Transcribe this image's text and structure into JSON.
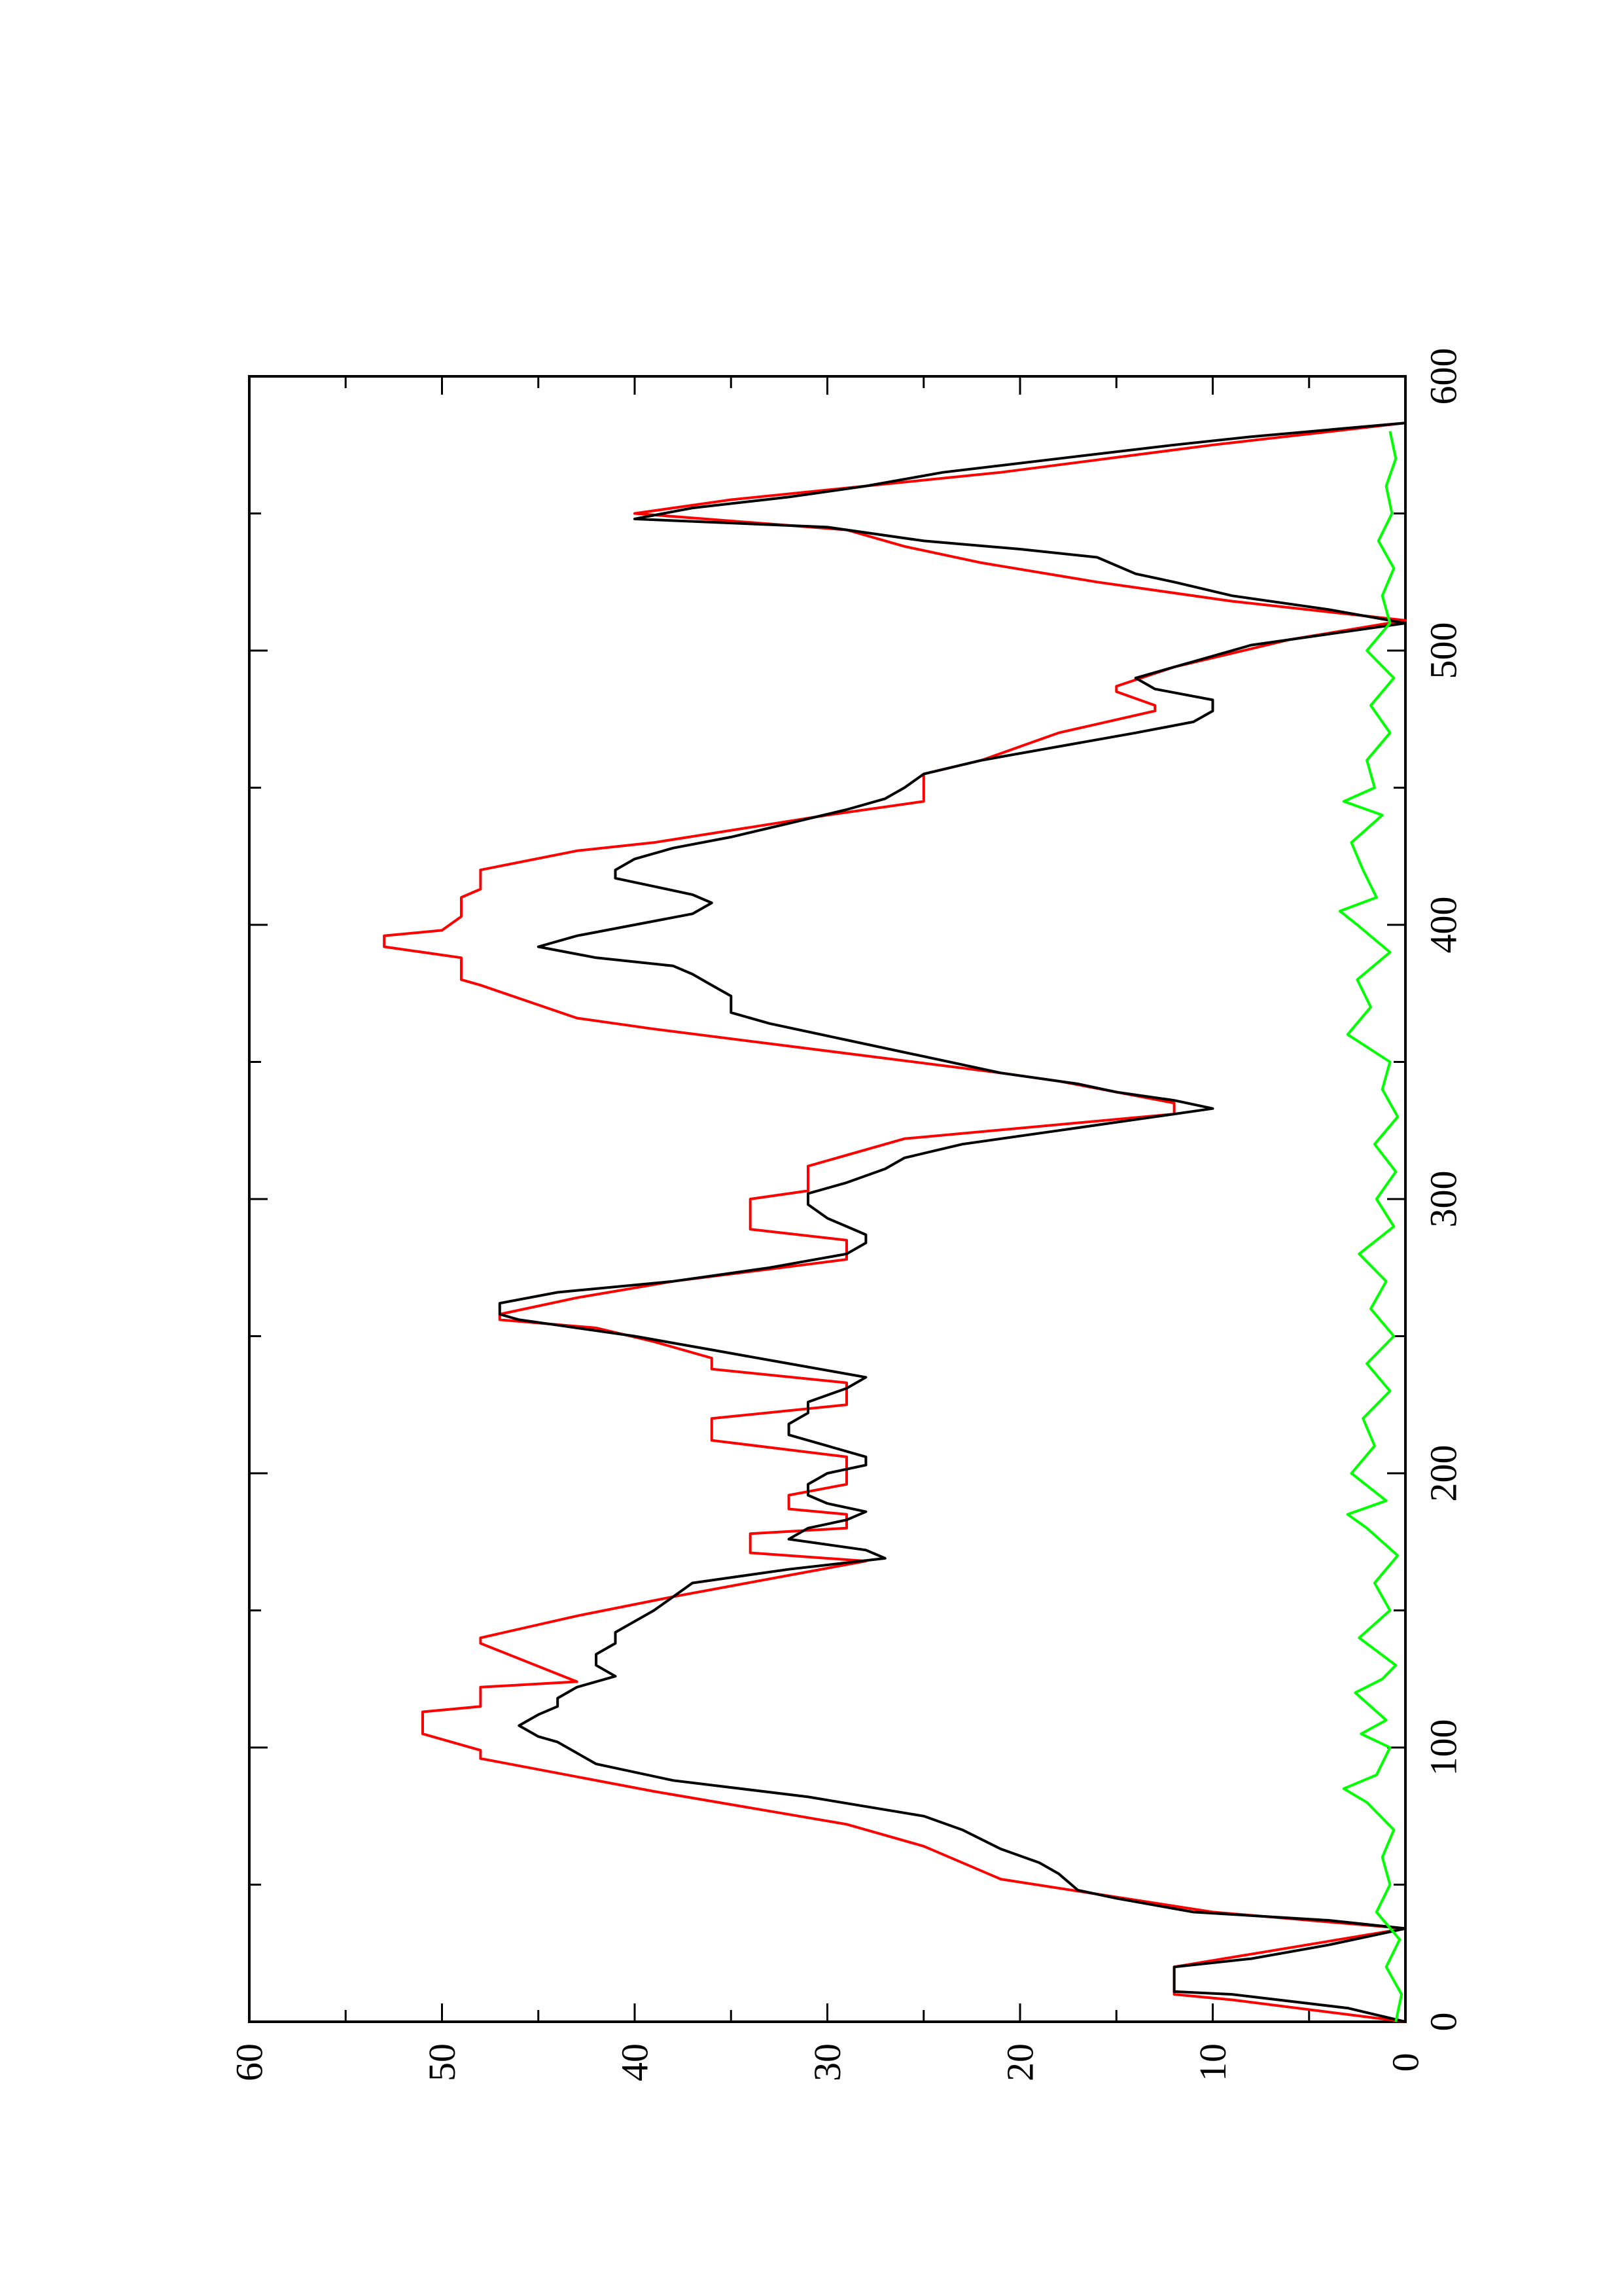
{
  "chart_data": {
    "type": "line",
    "orientation": "rotated 90° counter-clockwise (x runs bottom to top, y runs right to left)",
    "title": "",
    "xlabel": "",
    "ylabel": "",
    "xlim": [
      0,
      600
    ],
    "ylim": [
      0,
      60
    ],
    "x_ticks": [
      0,
      100,
      200,
      300,
      400,
      500,
      600
    ],
    "x_tick_labels": [
      "0",
      "100",
      "200",
      "300",
      "400",
      "500",
      "600"
    ],
    "y_ticks": [
      0,
      10,
      20,
      30,
      40,
      50,
      60
    ],
    "y_tick_labels": [
      "0",
      "10",
      "20",
      "30",
      "40",
      "50",
      "60"
    ],
    "grid": false,
    "legend": "none",
    "series": [
      {
        "color": "#ff0000",
        "x": [
          0,
          8,
          10,
          20,
          34,
          40,
          52,
          64,
          72,
          84,
          96,
          99,
          105,
          113,
          115,
          122,
          124,
          138,
          140,
          148,
          155,
          168,
          171,
          178,
          180,
          185,
          187,
          192,
          196,
          206,
          212,
          220,
          225,
          233,
          238,
          242,
          248,
          253,
          256,
          258,
          264,
          270,
          278,
          285,
          289,
          300,
          303,
          312,
          322,
          331,
          335,
          343,
          346,
          362,
          366,
          378,
          380,
          388,
          392,
          396,
          398,
          403,
          410,
          413,
          420,
          427,
          430,
          440,
          445,
          455,
          460,
          470,
          478,
          480,
          485,
          487,
          494,
          504,
          511,
          518,
          525,
          532,
          538,
          544,
          550,
          555,
          565,
          575,
          583
        ],
        "y": [
          0,
          9,
          12,
          12,
          0,
          10,
          21,
          25,
          29,
          39,
          48,
          48,
          51,
          51,
          48,
          48,
          43,
          48,
          48,
          43,
          38,
          28,
          34,
          34,
          29,
          29,
          32,
          32,
          29,
          29,
          36,
          36,
          29,
          29,
          36,
          36,
          39,
          42,
          47,
          47,
          43,
          38,
          29,
          29,
          34,
          34,
          31,
          31,
          26,
          12,
          12,
          18,
          21,
          39,
          43,
          48,
          49,
          49,
          53,
          53,
          50,
          49,
          49,
          48,
          48,
          43,
          39,
          30,
          25,
          25,
          22,
          18,
          13,
          13,
          15,
          15,
          12,
          6,
          0,
          9,
          16,
          22,
          26,
          29,
          40,
          35,
          21,
          10,
          0
        ]
      },
      {
        "color": "#000000",
        "x": [
          0,
          5,
          10,
          11,
          20,
          23,
          28,
          34,
          37,
          40,
          45,
          48,
          54,
          58,
          63,
          70,
          75,
          82,
          88,
          94,
          98,
          102,
          104,
          108,
          112,
          115,
          118,
          122,
          126,
          130,
          134,
          138,
          142,
          146,
          150,
          155,
          160,
          165,
          169,
          172,
          176,
          180,
          183,
          186,
          189,
          192,
          196,
          200,
          203,
          206,
          210,
          214,
          218,
          222,
          226,
          231,
          235,
          240,
          245,
          250,
          254,
          256,
          258,
          262,
          266,
          270,
          275,
          280,
          284,
          287,
          290,
          293,
          298,
          302,
          306,
          311,
          315,
          320,
          325,
          330,
          333,
          336,
          339,
          342,
          346,
          352,
          358,
          364,
          368,
          374,
          378,
          382,
          385,
          388,
          392,
          396,
          400,
          404,
          408,
          411,
          414,
          417,
          420,
          424,
          428,
          432,
          437,
          442,
          446,
          450,
          455,
          460,
          465,
          470,
          474,
          478,
          482,
          486,
          490,
          494,
          498,
          502,
          506,
          510,
          515,
          520,
          525,
          528,
          531,
          534,
          537,
          540,
          545,
          548,
          552,
          556,
          560,
          565,
          570,
          575,
          578,
          583
        ],
        "y": [
          0,
          3,
          9,
          12,
          12,
          8,
          4,
          0,
          4,
          11,
          15,
          17,
          18,
          19,
          21,
          23,
          25,
          31,
          38,
          42,
          43,
          44,
          45,
          46,
          45,
          44,
          44,
          43,
          41,
          42,
          42,
          41,
          41,
          40,
          39,
          38,
          37,
          32,
          27,
          28,
          32,
          31,
          29,
          28,
          30,
          31,
          31,
          30,
          28,
          28,
          30,
          32,
          32,
          31,
          31,
          29,
          28,
          32,
          36,
          40,
          44,
          46,
          47,
          47,
          44,
          38,
          33,
          29,
          28,
          28,
          29,
          30,
          31,
          31,
          29,
          27,
          26,
          23,
          18,
          13,
          10,
          12,
          15,
          17,
          21,
          25,
          29,
          33,
          35,
          35,
          36,
          37,
          38,
          42,
          45,
          43,
          40,
          37,
          36,
          37,
          39,
          41,
          41,
          40,
          38,
          35,
          32,
          29,
          27,
          26,
          25,
          22,
          18,
          14,
          11,
          10,
          10,
          13,
          14,
          12,
          10,
          8,
          4,
          0,
          4,
          9,
          12,
          14,
          15,
          16,
          20,
          25,
          30,
          40,
          37,
          32,
          28,
          24,
          18,
          12,
          8,
          0
        ]
      },
      {
        "color": "#00ff00",
        "x": [
          0,
          10,
          20,
          30,
          40,
          50,
          60,
          70,
          80,
          85,
          90,
          100,
          105,
          110,
          120,
          125,
          130,
          140,
          150,
          160,
          170,
          180,
          185,
          190,
          200,
          210,
          220,
          230,
          240,
          250,
          260,
          270,
          280,
          290,
          300,
          310,
          320,
          330,
          340,
          350,
          360,
          370,
          380,
          390,
          400,
          405,
          410,
          420,
          430,
          440,
          445,
          450,
          460,
          470,
          480,
          490,
          500,
          510,
          520,
          530,
          540,
          550,
          560,
          570,
          580
        ],
        "y": [
          0.5,
          0.2,
          1.0,
          0.3,
          1.5,
          0.8,
          1.2,
          0.6,
          2.0,
          3.2,
          1.5,
          0.8,
          2.3,
          1.0,
          2.6,
          1.2,
          0.5,
          2.4,
          0.8,
          1.6,
          0.4,
          2.0,
          3.0,
          1.0,
          2.8,
          1.6,
          2.2,
          0.8,
          2.0,
          0.6,
          1.8,
          1.0,
          2.4,
          0.6,
          1.5,
          0.5,
          1.6,
          0.4,
          1.2,
          0.8,
          3.0,
          1.8,
          2.5,
          0.8,
          2.5,
          3.4,
          1.5,
          2.2,
          2.8,
          1.2,
          3.2,
          1.6,
          2.0,
          0.8,
          1.8,
          0.6,
          2.0,
          0.8,
          1.2,
          0.6,
          1.4,
          0.7,
          1.0,
          0.5,
          0.8
        ]
      }
    ]
  }
}
